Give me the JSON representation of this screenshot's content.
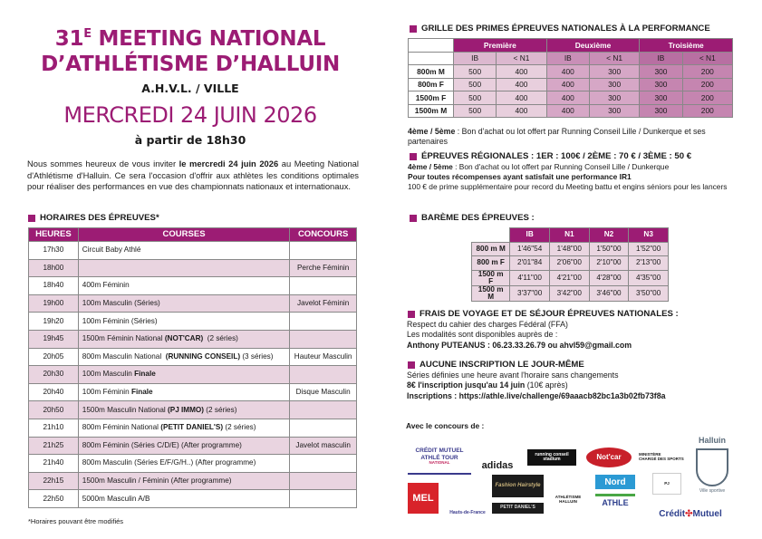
{
  "header": {
    "title_num": "31",
    "title_sup": "E",
    "title_rest": " MEETING NATIONAL",
    "title_line2": "D’ATHLÉTISME D’HALLUIN",
    "organizer": "A.H.V.L. / VILLE",
    "date": "MERCREDI 24 JUIN 2026",
    "start": "à partir de 18h30"
  },
  "intro": {
    "pre": "Nous sommes heureux de vous inviter ",
    "bold": "le mercredi 24 juin 2026",
    "post": " au Meeting National d'Athlétisme d'Halluin. Ce sera l'occasion d'offrir aux athlètes les conditions optimales pour réaliser des performances en vue des championnats nationaux et internationaux."
  },
  "schedule": {
    "title": "HORAIRES DES ÉPREUVES*",
    "headers": [
      "HEURES",
      "COURSES",
      "CONCOURS"
    ],
    "rows": [
      {
        "time": "17h30",
        "course": [
          "Circuit Baby Athlé",
          "",
          ""
        ],
        "field": ""
      },
      {
        "time": "18h00",
        "course": [
          "",
          "",
          ""
        ],
        "field": "Perche Féminin"
      },
      {
        "time": "18h40",
        "course": [
          "400m Féminin",
          "",
          ""
        ],
        "field": ""
      },
      {
        "time": "19h00",
        "course": [
          "100m Masculin (Séries)",
          "",
          ""
        ],
        "field": "Javelot Féminin"
      },
      {
        "time": "19h20",
        "course": [
          "100m Féminin (Séries)",
          "",
          ""
        ],
        "field": ""
      },
      {
        "time": "19h45",
        "course": [
          "1500m Féminin National ",
          "(NOT'CAR)",
          "  (2 séries)"
        ],
        "field": ""
      },
      {
        "time": "20h05",
        "course": [
          "800m Masculin National  ",
          "(RUNNING CONSEIL)",
          " (3 séries)"
        ],
        "field": "Hauteur Masculin"
      },
      {
        "time": "20h30",
        "course": [
          "100m Masculin ",
          "Finale",
          ""
        ],
        "field": ""
      },
      {
        "time": "20h40",
        "course": [
          "100m Féminin ",
          "Finale",
          ""
        ],
        "field": "Disque Masculin"
      },
      {
        "time": "20h50",
        "course": [
          "1500m Masculin National ",
          "(PJ IMMO)",
          " (2 séries)"
        ],
        "field": ""
      },
      {
        "time": "21h10",
        "course": [
          "800m Féminin National ",
          "(PETIT DANIEL'S)",
          " (2 séries)"
        ],
        "field": ""
      },
      {
        "time": "21h25",
        "course": [
          "800m Féminin (Séries C/D/E) (After programme)",
          "",
          ""
        ],
        "field": "Javelot masculin"
      },
      {
        "time": "21h40",
        "course": [
          "800m Masculin (Séries E/F/G/H..) (After programme)",
          "",
          ""
        ],
        "field": ""
      },
      {
        "time": "22h15",
        "course": [
          "1500m Masculin / Féminin (After programme)",
          "",
          ""
        ],
        "field": ""
      },
      {
        "time": "22h50",
        "course": [
          "5000m Masculin A/B",
          "",
          ""
        ],
        "field": ""
      }
    ],
    "footnote": "*Horaires pouvant être modifiés"
  },
  "primes": {
    "title": "GRILLE DES PRIMES ÉPREUVES NATIONALES À LA PERFORMANCE",
    "groups": [
      "Première",
      "Deuxième",
      "Troisième"
    ],
    "subheaders": [
      "IB",
      "< N1",
      "IB",
      "< N1",
      "IB",
      "< N1"
    ],
    "rows": [
      {
        "label": "800m M",
        "values": [
          "500",
          "400",
          "400",
          "300",
          "300",
          "200"
        ]
      },
      {
        "label": "800m F",
        "values": [
          "500",
          "400",
          "400",
          "300",
          "300",
          "200"
        ]
      },
      {
        "label": "1500m F",
        "values": [
          "500",
          "400",
          "400",
          "300",
          "300",
          "200"
        ]
      },
      {
        "label": "1500m M",
        "values": [
          "500",
          "400",
          "400",
          "300",
          "300",
          "200"
        ]
      }
    ],
    "note_rank": "4ème / 5ème",
    "note": " : Bon d'achat ou lot offert par Running Conseil Lille / Dunkerque et ses partenaires"
  },
  "regional": {
    "title": "ÉPREUVES RÉGIONALES : 1ER : 100€ / 2ÈME : 70 € / 3ÈME : 50 €",
    "note_rank": "4ème / 5ème",
    "note": " : Bon d'achat ou lot offert  par Running Conseil Lille / Dunkerque",
    "ir1": "Pour toutes récompenses ayant satisfait une performance IR1",
    "bonus": "100 € de prime supplémentaire pour record du Meeting battu et engins séniors pour les lancers"
  },
  "bareme": {
    "title": "BARÈME DES ÉPREUVES :",
    "headers": [
      "IB",
      "N1",
      "N2",
      "N3"
    ],
    "rows": [
      {
        "label": "800 m M",
        "values": [
          "1'46\"54",
          "1'48\"00",
          "1'50\"00",
          "1'52\"00"
        ]
      },
      {
        "label": "800 m F",
        "values": [
          "2'01\"84",
          "2'06\"00",
          "2'10\"00",
          "2'13\"00"
        ]
      },
      {
        "label": "1500 m F",
        "values": [
          "4'11\"00",
          "4'21\"00",
          "4'28\"00",
          "4'35\"00"
        ]
      },
      {
        "label": "1500 m M",
        "values": [
          "3'37\"00",
          "3'42\"00",
          "3'46\"00",
          "3'50\"00"
        ]
      }
    ]
  },
  "travel": {
    "title": "FRAIS DE VOYAGE ET DE SÉJOUR ÉPREUVES NATIONALES :",
    "line1": "Respect du cahier des charges Fédéral (FFA)",
    "line2": "Les modalités sont disponibles auprès de :",
    "contact": "Anthony PUTEANUS : 06.23.33.26.79 ou ahvl59@gmail.com"
  },
  "registration": {
    "title": "AUCUNE INSCRIPTION LE JOUR-MÊME",
    "line1": "Séries définies une heure avant l'horaire sans changements",
    "fee_bold": "8€ l'inscription jusqu'au 14 juin",
    "fee_rest": " (10€ après)",
    "link": "Inscriptions : https://athle.live/challenge/69aaacb82bc1a3b02fb73f8a"
  },
  "sponsors": {
    "title": "Avec le concours de :",
    "logos": [
      "CRÉDIT MUTUEL ATHLÉ TOUR NATIONAL",
      "adidas",
      "running conseil stadium",
      "Not'car",
      "MINISTÈRE CHARGÉ DES SPORTS",
      "Halluin Ville sportive",
      "MEL MÉTROPOLE",
      "Région Hauts-de-France",
      "Fashion Hairstyle",
      "PETIT DANIEL'S",
      "ATHLÉTISME HALLUIN V.L.",
      "Nord",
      "ATHLE",
      "PJ IMMO",
      "Crédit Mutuel"
    ]
  },
  "colors": {
    "accent": "#9c1c74",
    "row_alt": "#e9d4e0"
  }
}
